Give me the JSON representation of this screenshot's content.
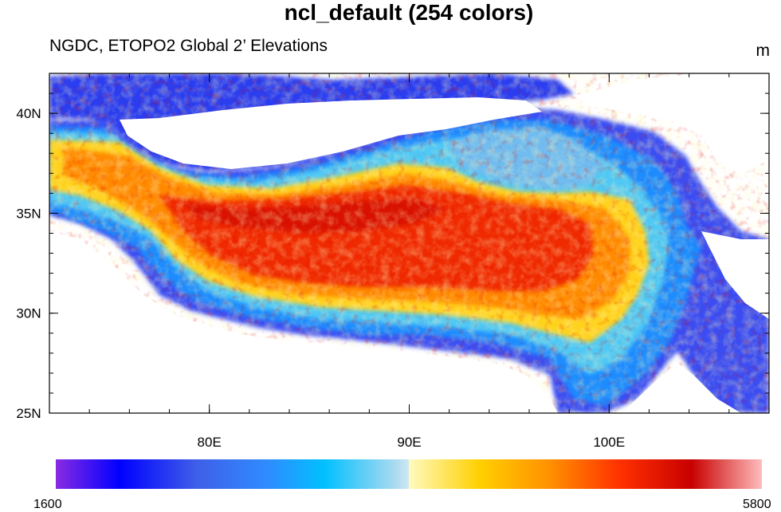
{
  "title": "ncl_default (254 colors)",
  "subtitle_left": "NGDC, ETOPO2 Global 2’ Elevations",
  "units": "m",
  "map": {
    "lon_range": [
      72,
      108
    ],
    "lat_range": [
      25,
      42
    ],
    "lon_ticks": [
      {
        "value": 80,
        "label": "80E"
      },
      {
        "value": 90,
        "label": "90E"
      },
      {
        "value": 100,
        "label": "100E"
      }
    ],
    "lat_ticks": [
      {
        "value": 25,
        "label": "25N"
      },
      {
        "value": 30,
        "label": "30N"
      },
      {
        "value": 35,
        "label": "35N"
      },
      {
        "value": 40,
        "label": "40N"
      }
    ]
  },
  "colorbar": {
    "min_label": "1600",
    "max_label": "5800",
    "colors": [
      "#8a2be2",
      "#2a1ef5",
      "#0000ff",
      "#1f5fff",
      "#3f8cff",
      "#00c0ff",
      "#5ed0f0",
      "#c8e6f2",
      "#fffac8",
      "#ffe033",
      "#ffb300",
      "#ff7f00",
      "#ff3c00",
      "#e60000",
      "#c00000",
      "#e06060",
      "#ffb6b6"
    ]
  }
}
